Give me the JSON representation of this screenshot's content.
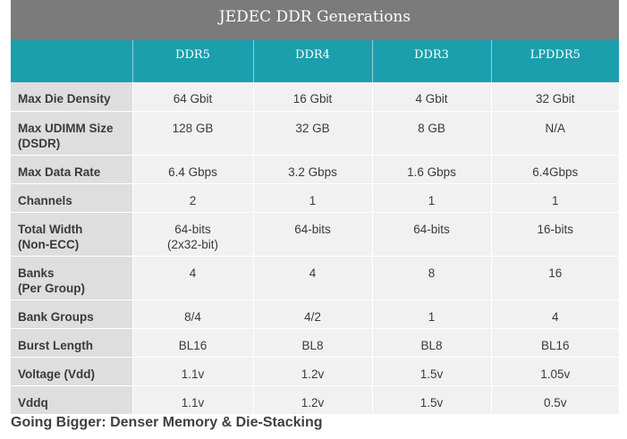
{
  "title": "JEDEC DDR Generations",
  "columns": [
    "",
    "DDR5",
    "DDR4",
    "DDR3",
    "LPDDR5"
  ],
  "rows": [
    {
      "label": [
        "Max Die Density"
      ],
      "cells": [
        [
          "64 Gbit"
        ],
        [
          "16 Gbit"
        ],
        [
          "4 Gbit"
        ],
        [
          "32 Gbit"
        ]
      ]
    },
    {
      "label": [
        "Max UDIMM Size",
        "(DSDR)"
      ],
      "cells": [
        [
          "128 GB"
        ],
        [
          "32 GB"
        ],
        [
          "8 GB"
        ],
        [
          "N/A"
        ]
      ]
    },
    {
      "label": [
        "Max Data Rate"
      ],
      "cells": [
        [
          "6.4 Gbps"
        ],
        [
          "3.2 Gbps"
        ],
        [
          "1.6 Gbps"
        ],
        [
          "6.4Gbps"
        ]
      ]
    },
    {
      "label": [
        "Channels"
      ],
      "cells": [
        [
          "2"
        ],
        [
          "1"
        ],
        [
          "1"
        ],
        [
          "1"
        ]
      ]
    },
    {
      "label": [
        "Total Width",
        "(Non-ECC)"
      ],
      "cells": [
        [
          "64-bits",
          "(2x32-bit)"
        ],
        [
          "64-bits"
        ],
        [
          "64-bits"
        ],
        [
          "16-bits"
        ]
      ]
    },
    {
      "label": [
        "Banks",
        "(Per Group)"
      ],
      "cells": [
        [
          "4"
        ],
        [
          "4"
        ],
        [
          "8"
        ],
        [
          "16"
        ]
      ]
    },
    {
      "label": [
        "Bank Groups"
      ],
      "cells": [
        [
          "8/4"
        ],
        [
          "4/2"
        ],
        [
          "1"
        ],
        [
          "4"
        ]
      ]
    },
    {
      "label": [
        "Burst Length"
      ],
      "cells": [
        [
          "BL16"
        ],
        [
          "BL8"
        ],
        [
          "BL8"
        ],
        [
          "BL16"
        ]
      ]
    },
    {
      "label": [
        "Voltage (Vdd)"
      ],
      "cells": [
        [
          "1.1v"
        ],
        [
          "1.2v"
        ],
        [
          "1.5v"
        ],
        [
          "1.05v"
        ]
      ]
    },
    {
      "label": [
        "Vddq"
      ],
      "cells": [
        [
          "1.1v"
        ],
        [
          "1.2v"
        ],
        [
          "1.5v"
        ],
        [
          "0.5v"
        ]
      ]
    }
  ],
  "caption": "Going Bigger: Denser Memory & Die-Stacking",
  "colors": {
    "title_bar": "#7b7b7b",
    "header": "#1b9fad",
    "label_cell": "#dedede",
    "data_cell": "#f1f1f1"
  }
}
